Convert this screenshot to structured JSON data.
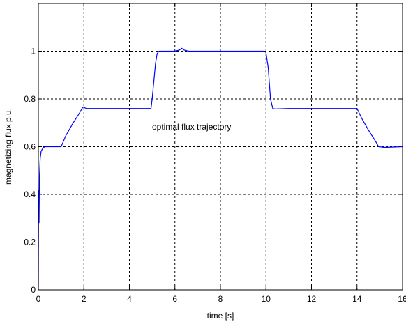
{
  "chart_data": {
    "type": "line",
    "title": "",
    "xlabel": "time [s]",
    "ylabel": "magnetizing flux p.u.",
    "xlim": [
      0,
      16
    ],
    "ylim": [
      0,
      1.2
    ],
    "xticks": [
      "0",
      "2",
      "4",
      "6",
      "8",
      "10",
      "12",
      "14",
      "16"
    ],
    "yticks": [
      "0",
      "0.2",
      "0.4",
      "0.6",
      "0.8",
      "1"
    ],
    "grid": true,
    "annotation": "optimal flux trajectory",
    "series": [
      {
        "color": "#0000ff",
        "x": [
          0,
          0.01,
          0.03,
          0.05,
          0.08,
          0.12,
          0.2,
          0.3,
          0.5,
          1.0,
          1.2,
          1.5,
          1.8,
          1.95,
          2.0,
          2.1,
          3.0,
          4.0,
          4.95,
          5.0,
          5.08,
          5.15,
          5.22,
          5.3,
          5.45,
          6.0,
          6.2,
          6.3,
          6.4,
          6.6,
          7.0,
          8.0,
          9.0,
          9.9,
          10.0,
          10.1,
          10.2,
          10.3,
          10.4,
          11.0,
          12.0,
          13.0,
          14.0,
          14.2,
          14.5,
          14.8,
          14.95,
          15.2,
          16.0
        ],
        "y": [
          0,
          0.42,
          0.28,
          0.48,
          0.55,
          0.58,
          0.595,
          0.6,
          0.6,
          0.6,
          0.645,
          0.695,
          0.74,
          0.765,
          0.765,
          0.76,
          0.76,
          0.76,
          0.76,
          0.8,
          0.88,
          0.95,
          0.99,
          1.0,
          1.0,
          1.0,
          1.005,
          1.012,
          1.005,
          1.0,
          1.0,
          1.0,
          1.0,
          1.0,
          0.995,
          0.93,
          0.8,
          0.76,
          0.758,
          0.76,
          0.76,
          0.76,
          0.76,
          0.72,
          0.67,
          0.625,
          0.6,
          0.597,
          0.6
        ]
      }
    ]
  }
}
